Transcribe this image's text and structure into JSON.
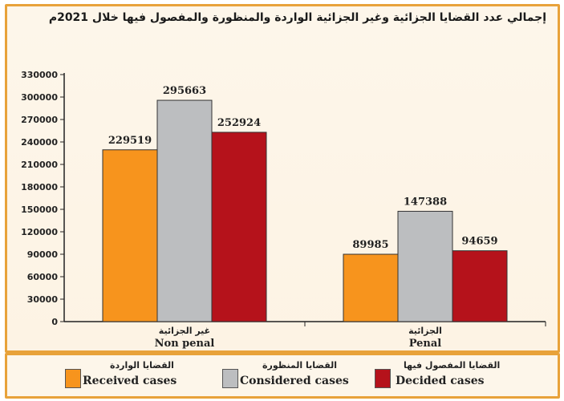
{
  "chart_data": {
    "type": "bar",
    "title": "إجمالي عدد القضايا الجزائية وغير الجزائية الواردة والمنظورة والمفصول فيها خلال 2021م",
    "categories": [
      {
        "ar": "غير الجزائية",
        "en": "Non penal"
      },
      {
        "ar": "الجزائية",
        "en": "Penal"
      }
    ],
    "series": [
      {
        "name_ar": "القضايا الواردة",
        "name": "Received cases",
        "color": "#f7941d",
        "values": [
          229519,
          89985
        ]
      },
      {
        "name_ar": "القضايا المنظورة",
        "name": "Considered cases",
        "color": "#bcbec0",
        "values": [
          295663,
          147388
        ]
      },
      {
        "name_ar": "القضايا المفصول فيها",
        "name": "Decided cases",
        "color": "#b5121b",
        "values": [
          252924,
          94659
        ]
      }
    ],
    "ylim": [
      0,
      330000
    ],
    "yticks": [
      "0",
      "30000",
      "60000",
      "90000",
      "120000",
      "150000",
      "180000",
      "210000",
      "240000",
      "270000",
      "300000",
      "330000"
    ],
    "grid": false,
    "legend_position": "bottom"
  }
}
